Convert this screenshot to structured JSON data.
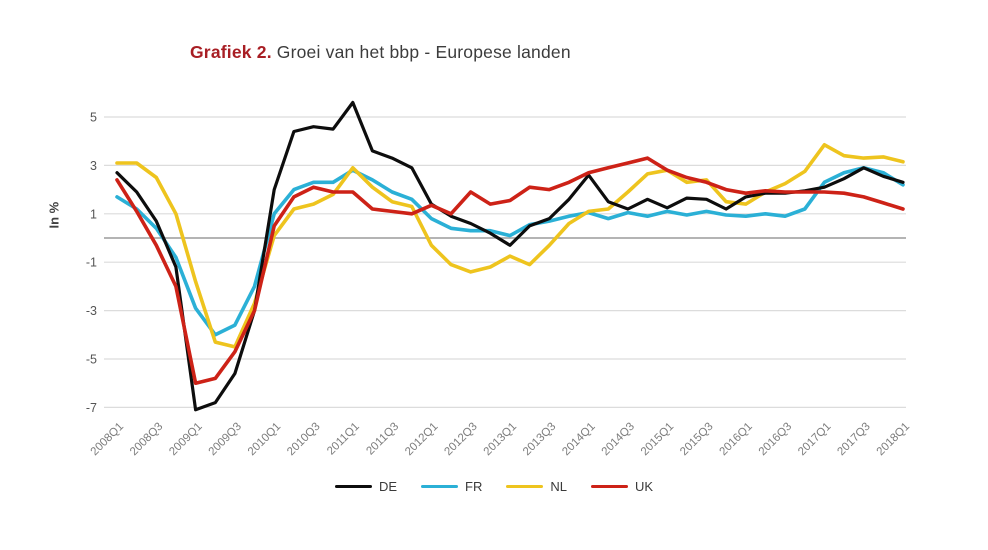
{
  "title": {
    "prefix": "Grafiek 2.",
    "rest": "Groei van het bbp - Europese landen"
  },
  "y_axis": {
    "title": "In %",
    "ticks": [
      5,
      3,
      1,
      -1,
      -3,
      -5,
      -7
    ]
  },
  "x_axis": {
    "tick_labels": [
      "2008Q1",
      "2008Q3",
      "2009Q1",
      "2009Q3",
      "2010Q1",
      "2010Q3",
      "2011Q1",
      "2011Q3",
      "2012Q1",
      "2012Q3",
      "2013Q1",
      "2013Q3",
      "2014Q1",
      "2014Q3",
      "2015Q1",
      "2015Q3",
      "2016Q1",
      "2016Q3",
      "2017Q1",
      "2017Q3",
      "2018Q1"
    ]
  },
  "colors": {
    "grid": "#dcdcdc",
    "zero_line": "#9c9c9c",
    "x_tick_text": "#7d7d7d",
    "y_tick_text": "#555555",
    "title_prefix": "#a81e24",
    "title_text": "#3c3c3c"
  },
  "chart_data": {
    "type": "line",
    "title": "Grafiek 2. Groei van het bbp - Europese landen",
    "xlabel": "",
    "ylabel": "In %",
    "ylim": [
      -7.5,
      6
    ],
    "y_ticks": [
      5,
      3,
      1,
      -1,
      -3,
      -5,
      -7
    ],
    "grid": true,
    "legend_position": "bottom",
    "categories": [
      "2008Q1",
      "2008Q2",
      "2008Q3",
      "2008Q4",
      "2009Q1",
      "2009Q2",
      "2009Q3",
      "2009Q4",
      "2010Q1",
      "2010Q2",
      "2010Q3",
      "2010Q4",
      "2011Q1",
      "2011Q2",
      "2011Q3",
      "2011Q4",
      "2012Q1",
      "2012Q2",
      "2012Q3",
      "2012Q4",
      "2013Q1",
      "2013Q2",
      "2013Q3",
      "2013Q4",
      "2014Q1",
      "2014Q2",
      "2014Q3",
      "2014Q4",
      "2015Q1",
      "2015Q2",
      "2015Q3",
      "2015Q4",
      "2016Q1",
      "2016Q2",
      "2016Q3",
      "2016Q4",
      "2017Q1",
      "2017Q2",
      "2017Q3",
      "2017Q4",
      "2018Q1"
    ],
    "x_tick_labels": [
      "2008Q1",
      "2008Q3",
      "2009Q1",
      "2009Q3",
      "2010Q1",
      "2010Q3",
      "2011Q1",
      "2011Q3",
      "2012Q1",
      "2012Q3",
      "2013Q1",
      "2013Q3",
      "2014Q1",
      "2014Q3",
      "2015Q1",
      "2015Q3",
      "2016Q1",
      "2016Q3",
      "2017Q1",
      "2017Q3",
      "2018Q1"
    ],
    "series": [
      {
        "name": "FR",
        "color": "#2bb0d6",
        "values": [
          1.7,
          1.2,
          0.4,
          -0.8,
          -2.9,
          -4.0,
          -3.6,
          -2.0,
          1.0,
          2.0,
          2.3,
          2.3,
          2.8,
          2.4,
          1.9,
          1.6,
          0.8,
          0.4,
          0.3,
          0.3,
          0.1,
          0.55,
          0.7,
          0.9,
          1.05,
          0.8,
          1.05,
          0.9,
          1.1,
          0.95,
          1.1,
          0.95,
          0.9,
          1.0,
          0.9,
          1.2,
          2.3,
          2.7,
          2.9,
          2.7,
          2.2
        ]
      },
      {
        "name": "NL",
        "color": "#eec41e",
        "values": [
          3.1,
          3.1,
          2.5,
          1.0,
          -1.8,
          -4.3,
          -4.5,
          -2.7,
          0.1,
          1.2,
          1.4,
          1.8,
          2.9,
          2.1,
          1.5,
          1.3,
          -0.3,
          -1.1,
          -1.4,
          -1.2,
          -0.75,
          -1.1,
          -0.3,
          0.6,
          1.1,
          1.2,
          1.9,
          2.65,
          2.8,
          2.3,
          2.4,
          1.5,
          1.4,
          1.9,
          2.25,
          2.75,
          3.85,
          3.4,
          3.3,
          3.35,
          3.15
        ]
      },
      {
        "name": "DE",
        "color": "#0d0d0d",
        "values": [
          2.7,
          1.9,
          0.7,
          -1.2,
          -7.1,
          -6.8,
          -5.6,
          -3.0,
          2.0,
          4.4,
          4.6,
          4.5,
          5.6,
          3.6,
          3.3,
          2.9,
          1.4,
          0.9,
          0.6,
          0.2,
          -0.3,
          0.5,
          0.8,
          1.6,
          2.6,
          1.5,
          1.2,
          1.6,
          1.25,
          1.65,
          1.6,
          1.2,
          1.7,
          1.85,
          1.85,
          1.95,
          2.1,
          2.45,
          2.9,
          2.55,
          2.3
        ]
      },
      {
        "name": "UK",
        "color": "#cd2217",
        "values": [
          2.4,
          1.1,
          -0.3,
          -2.0,
          -6.0,
          -5.8,
          -4.7,
          -3.0,
          0.5,
          1.7,
          2.1,
          1.9,
          1.9,
          1.2,
          1.1,
          1.0,
          1.35,
          1.0,
          1.9,
          1.4,
          1.55,
          2.1,
          2.0,
          2.3,
          2.7,
          2.9,
          3.1,
          3.3,
          2.8,
          2.5,
          2.3,
          2.0,
          1.85,
          1.95,
          1.9,
          1.9,
          1.9,
          1.85,
          1.7,
          1.45,
          1.2
        ]
      }
    ],
    "legend_order": [
      "DE",
      "FR",
      "NL",
      "UK"
    ]
  }
}
